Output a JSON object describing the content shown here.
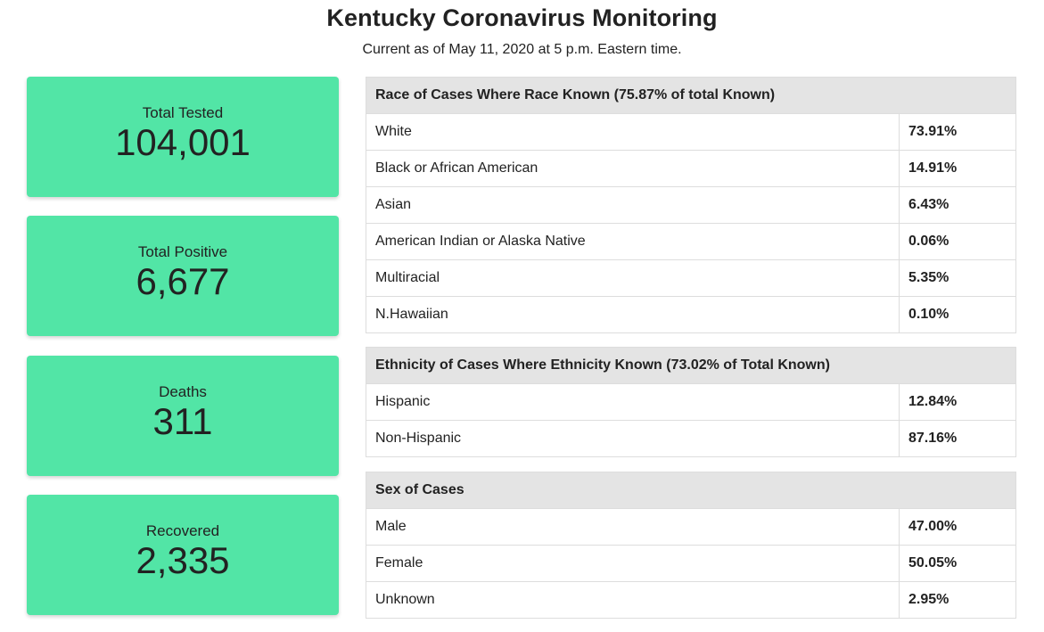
{
  "header": {
    "title": "Kentucky Coronavirus Monitoring",
    "subtitle": "Current as of May 11, 2020 at 5 p.m. Eastern time."
  },
  "colors": {
    "card_background": "#52e5a6",
    "table_header_background": "#e4e4e4"
  },
  "stats": [
    {
      "label": "Total Tested",
      "value": "104,001"
    },
    {
      "label": "Total Positive",
      "value": "6,677"
    },
    {
      "label": "Deaths",
      "value": "311"
    },
    {
      "label": "Recovered",
      "value": "2,335"
    }
  ],
  "race_table": {
    "title": "Race of Cases Where Race Known (75.87% of total Known)",
    "rows": [
      {
        "label": "White",
        "value": "73.91%"
      },
      {
        "label": "Black or African American",
        "value": "14.91%"
      },
      {
        "label": "Asian",
        "value": "6.43%"
      },
      {
        "label": "American Indian or Alaska Native",
        "value": "0.06%"
      },
      {
        "label": "Multiracial",
        "value": "5.35%"
      },
      {
        "label": "N.Hawaiian",
        "value": "0.10%"
      }
    ]
  },
  "ethnicity_table": {
    "title": "Ethnicity of Cases Where Ethnicity Known (73.02% of Total Known)",
    "rows": [
      {
        "label": "Hispanic",
        "value": "12.84%"
      },
      {
        "label": "Non-Hispanic",
        "value": "87.16%"
      }
    ]
  },
  "sex_table": {
    "title": "Sex of Cases",
    "rows": [
      {
        "label": "Male",
        "value": "47.00%"
      },
      {
        "label": "Female",
        "value": "50.05%"
      },
      {
        "label": "Unknown",
        "value": "2.95%"
      }
    ]
  }
}
